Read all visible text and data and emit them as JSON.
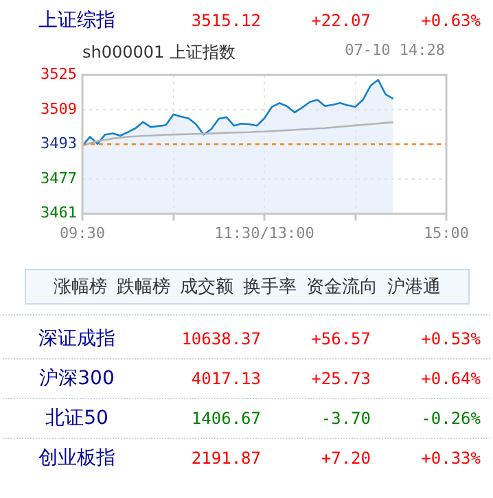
{
  "chart_data": [
    {
      "type": "other",
      "annotations": [
        "上证综指",
        "3515.12",
        "+22.07",
        "+0.63%"
      ],
      "colors": [
        "#000099",
        "#ff0000",
        "#ff0000",
        "#ff0000"
      ]
    },
    {
      "type": "line",
      "title": "sh000001 上证指数",
      "subtitle": "07-10 14:28",
      "categories": [
        "09:30",
        null,
        null,
        null,
        null,
        null,
        null,
        null,
        null,
        null,
        null,
        null,
        null,
        null,
        null,
        null,
        null,
        null,
        null,
        null,
        null,
        null,
        null,
        null,
        "11:30/13:00",
        null,
        null,
        null,
        null,
        null,
        null,
        null,
        null,
        null,
        null,
        null,
        null,
        null,
        null,
        null,
        null,
        null,
        null,
        null,
        null,
        null,
        null,
        null,
        "15:00"
      ],
      "ylim": [
        3461,
        3525
      ],
      "yticks": [
        3461,
        3477,
        3493,
        3509,
        3525
      ],
      "grid": true,
      "legend": false,
      "marker": "none",
      "line_style": "solid",
      "ref_lines": [
        {
          "axis": "y",
          "value": 3493.05,
          "color": "#f08a1c",
          "line_style": "dashed"
        }
      ],
      "series": [
        {
          "type": "area",
          "color": "#1580cc",
          "values": [
            3492.3,
            3496.5,
            3493.2,
            3497.5,
            3498,
            3497,
            3498.6,
            3500.4,
            3503.3,
            3501,
            3501.4,
            3501.8,
            3506.8,
            3505.8,
            3505,
            3502.2,
            3497.5,
            3500,
            3504.8,
            3505.5,
            3501.6,
            3502.5,
            3502.3,
            3501.6,
            3505,
            3510.3,
            3512,
            3510.5,
            3507.7,
            3510,
            3512.5,
            3513.5,
            3510.6,
            3511.2,
            3512,
            3511,
            3510.3,
            3513.5,
            3520,
            3522.7,
            3516,
            3514,
            null,
            null,
            null,
            null,
            null,
            null,
            null
          ]
        },
        {
          "type": "line",
          "color": "#b4b4b4",
          "values": [
            3492.3,
            3493.5,
            3494.5,
            3495,
            3495.7,
            3496.1,
            3496.5,
            3496.7,
            3496.9,
            3497,
            3497.2,
            3497.4,
            3497.5,
            3497.6,
            3497.7,
            3497.8,
            3497.9,
            3498,
            3498.2,
            3498.3,
            3498.4,
            3498.5,
            3498.6,
            3498.8,
            3498.9,
            3499.1,
            3499.3,
            3499.5,
            3499.7,
            3499.9,
            3500.1,
            3500.3,
            3500.5,
            3500.8,
            3501.1,
            3501.4,
            3501.7,
            3502,
            3502.3,
            3502.6,
            3502.9,
            3503.2,
            null,
            null,
            null,
            null,
            null,
            null,
            null
          ]
        }
      ]
    },
    {
      "type": "other",
      "annotations": [
        "涨幅榜",
        "跌幅榜",
        "成交额",
        "换手率",
        "资金流向",
        "沪港通"
      ],
      "colors": [
        "#333333",
        "#333333",
        "#333333",
        "#333333",
        "#333333",
        "#333333"
      ]
    },
    {
      "type": "other",
      "annotations": [
        "深证成指",
        "10638.37",
        "+56.57",
        "+0.53%",
        "沪深300",
        "4017.13",
        "+25.73",
        "+0.64%",
        "北证50",
        "1406.67",
        "-3.70",
        "-0.26%",
        "创业板指",
        "2191.87",
        "+7.20",
        "+0.33%"
      ],
      "colors": [
        "#000099",
        "#ff0000",
        "#ff0000",
        "#ff0000",
        "#000099",
        "#ff0000",
        "#ff0000",
        "#ff0000",
        "#000099",
        "#008000",
        "#008000",
        "#008000",
        "#000099",
        "#ff0000",
        "#ff0000",
        "#ff0000"
      ]
    }
  ]
}
